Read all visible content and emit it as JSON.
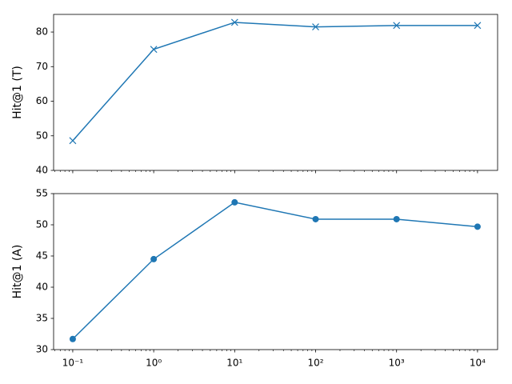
{
  "chart_data": [
    {
      "type": "line",
      "xscale": "log",
      "marker": "x",
      "x": [
        0.1,
        1,
        10,
        100,
        1000,
        10000
      ],
      "series": [
        {
          "name": "Hit@1 (T)",
          "color": "#1f77b4",
          "values": [
            48.6,
            75,
            82.8,
            81.5,
            81.9,
            81.9
          ]
        }
      ],
      "ylabel": "Hit@1 (T)",
      "xlim": [
        0.058,
        17700
      ],
      "xticks": [
        0.1,
        1,
        10,
        100,
        1000,
        10000
      ],
      "ylim": [
        40,
        85.1
      ],
      "yticks": [
        40,
        50,
        60,
        70,
        80
      ]
    },
    {
      "type": "line",
      "xscale": "log",
      "marker": "o",
      "x": [
        0.1,
        1,
        10,
        100,
        1000,
        10000
      ],
      "series": [
        {
          "name": "Hit@1 (A)",
          "color": "#1f77b4",
          "values": [
            31.7,
            44.5,
            53.6,
            50.9,
            50.9,
            49.7
          ]
        }
      ],
      "ylabel": "Hit@1 (A)",
      "xlim": [
        0.058,
        17700
      ],
      "xticks": [
        {
          "value": 0.1,
          "label": "10⁻¹"
        },
        {
          "value": 1,
          "label": "10⁰"
        },
        {
          "value": 10,
          "label": "10¹"
        },
        {
          "value": 100,
          "label": "10²"
        },
        {
          "value": 1000,
          "label": "10³"
        },
        {
          "value": 10000,
          "label": "10⁴"
        }
      ],
      "ylim": [
        30,
        55
      ],
      "yticks": [
        30,
        35,
        40,
        45,
        50,
        55
      ]
    }
  ]
}
